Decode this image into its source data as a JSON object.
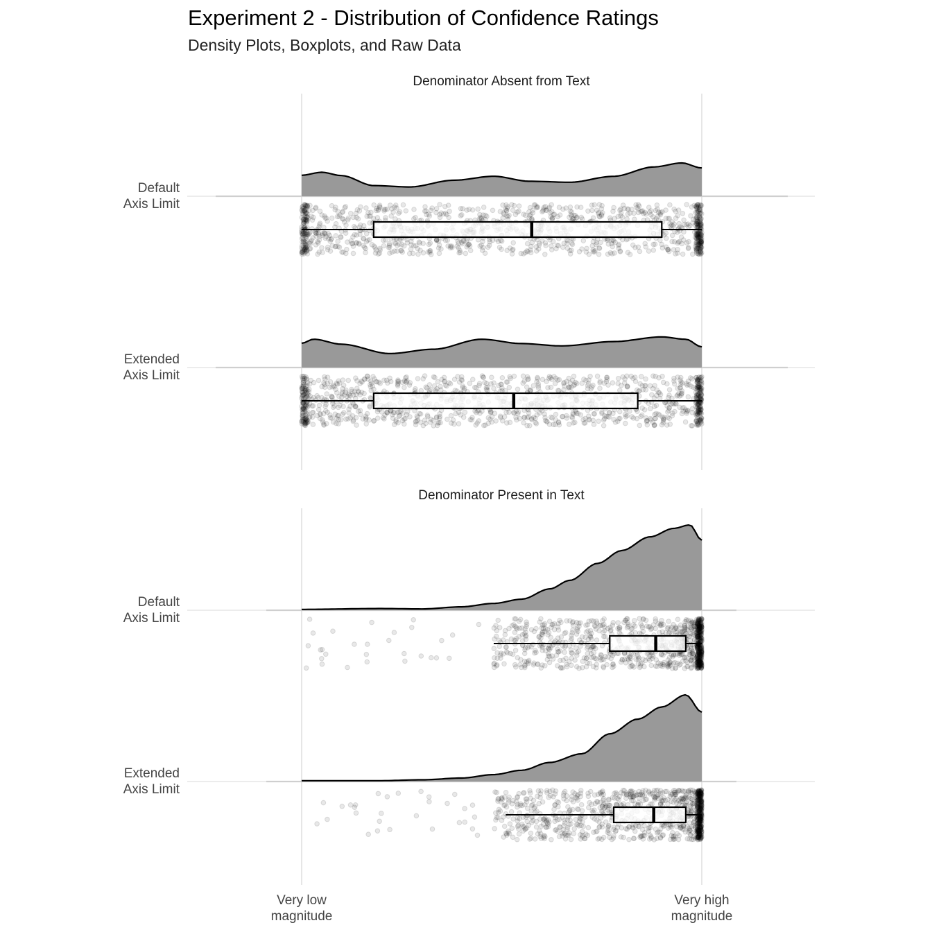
{
  "title": "Experiment 2 - Distribution of Confidence Ratings",
  "subtitle": "Density Plots, Boxplots, and Raw Data",
  "chart_data": {
    "type": "raincloud",
    "x_axis": {
      "min": 0,
      "max": 1,
      "tick_labels": [
        {
          "value": 0,
          "lines": [
            "Very low",
            "magnitude"
          ]
        },
        {
          "value": 1,
          "lines": [
            "Very high",
            "magnitude"
          ]
        }
      ]
    },
    "panels": [
      {
        "strip": "Denominator Absent from Text",
        "rows": [
          {
            "label_lines": [
              "Default",
              "Axis Limit"
            ],
            "density_relative": [
              [
                0,
                0.63
              ],
              [
                0.05,
                0.72
              ],
              [
                0.1,
                0.62
              ],
              [
                0.18,
                0.32
              ],
              [
                0.27,
                0.28
              ],
              [
                0.38,
                0.48
              ],
              [
                0.48,
                0.6
              ],
              [
                0.57,
                0.45
              ],
              [
                0.67,
                0.42
              ],
              [
                0.78,
                0.6
              ],
              [
                0.88,
                0.88
              ],
              [
                0.95,
                1.0
              ],
              [
                1,
                0.85
              ]
            ],
            "boxplot": {
              "whisker_low": 0,
              "q1": 0.18,
              "median": 0.575,
              "q3": 0.9,
              "whisker_high": 1
            },
            "points_profile": "uniform"
          },
          {
            "label_lines": [
              "Extended",
              "Axis Limit"
            ],
            "density_relative": [
              [
                0,
                0.73
              ],
              [
                0.03,
                0.85
              ],
              [
                0.1,
                0.7
              ],
              [
                0.22,
                0.42
              ],
              [
                0.33,
                0.55
              ],
              [
                0.45,
                0.85
              ],
              [
                0.55,
                0.72
              ],
              [
                0.65,
                0.65
              ],
              [
                0.78,
                0.78
              ],
              [
                0.9,
                0.92
              ],
              [
                0.96,
                0.85
              ],
              [
                1,
                0.62
              ]
            ],
            "boxplot": {
              "whisker_low": 0,
              "q1": 0.18,
              "median": 0.53,
              "q3": 0.84,
              "whisker_high": 1
            },
            "points_profile": "uniform"
          }
        ]
      },
      {
        "strip": "Denominator Present in Text",
        "rows": [
          {
            "label_lines": [
              "Default",
              "Axis Limit"
            ],
            "density_relative": [
              [
                0,
                0.01
              ],
              [
                0.2,
                0.02
              ],
              [
                0.3,
                0.015
              ],
              [
                0.4,
                0.04
              ],
              [
                0.48,
                0.08
              ],
              [
                0.55,
                0.13
              ],
              [
                0.62,
                0.25
              ],
              [
                0.67,
                0.35
              ],
              [
                0.74,
                0.55
              ],
              [
                0.8,
                0.7
              ],
              [
                0.87,
                0.86
              ],
              [
                0.93,
                0.96
              ],
              [
                0.97,
                1.0
              ],
              [
                1,
                0.82
              ]
            ],
            "boxplot": {
              "whisker_low": 0.48,
              "q1": 0.77,
              "median": 0.885,
              "q3": 0.96,
              "whisker_high": 1
            },
            "points_profile": "skewed_high"
          },
          {
            "label_lines": [
              "Extended",
              "Axis Limit"
            ],
            "density_relative": [
              [
                0,
                0.01
              ],
              [
                0.2,
                0.01
              ],
              [
                0.3,
                0.02
              ],
              [
                0.4,
                0.04
              ],
              [
                0.48,
                0.08
              ],
              [
                0.55,
                0.13
              ],
              [
                0.62,
                0.22
              ],
              [
                0.7,
                0.32
              ],
              [
                0.77,
                0.55
              ],
              [
                0.84,
                0.72
              ],
              [
                0.9,
                0.86
              ],
              [
                0.96,
                1.0
              ],
              [
                1,
                0.8
              ]
            ],
            "boxplot": {
              "whisker_low": 0.51,
              "q1": 0.78,
              "median": 0.88,
              "q3": 0.96,
              "whisker_high": 1
            },
            "points_profile": "skewed_high"
          }
        ]
      }
    ]
  }
}
